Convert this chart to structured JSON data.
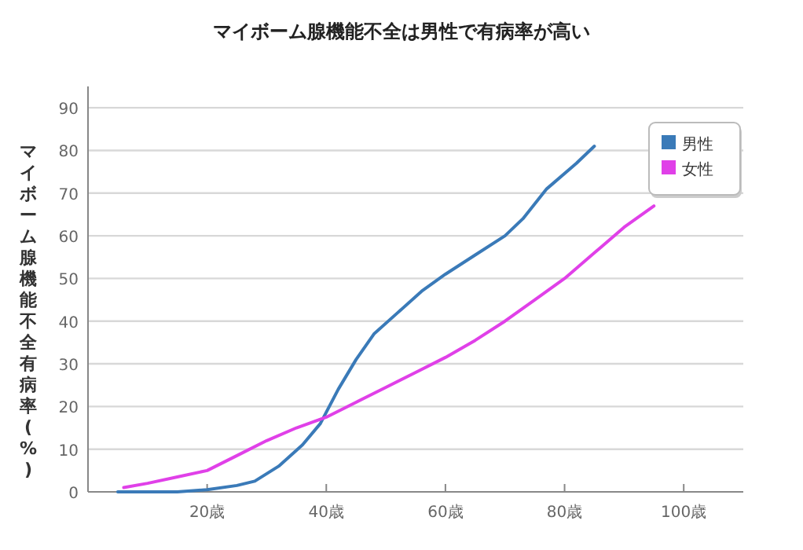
{
  "chart_data": {
    "type": "line",
    "title": "マイボーム腺機能不全は男性で有病率が高い",
    "ylabel": "マイボーム腺機能不全有病率(%)",
    "xlim": [
      0,
      110
    ],
    "xticks": [
      {
        "value": 20,
        "label": "20歳"
      },
      {
        "value": 40,
        "label": "40歳"
      },
      {
        "value": 60,
        "label": "60歳"
      },
      {
        "value": 80,
        "label": "80歳"
      },
      {
        "value": 100,
        "label": "100歳"
      }
    ],
    "ylim": [
      0,
      95
    ],
    "yticks": [
      0,
      10,
      20,
      30,
      40,
      50,
      60,
      70,
      80,
      90
    ],
    "grid": "y",
    "legend": "top right",
    "marker": "none",
    "line_style": "solid",
    "series": [
      {
        "name": "男性",
        "color": "#3a7ab8",
        "x": [
          5,
          15,
          20,
          25,
          28,
          32,
          36,
          39,
          42,
          45,
          48,
          52,
          56,
          60,
          65,
          70,
          73,
          77,
          82,
          85
        ],
        "values": [
          0,
          0,
          0.5,
          1.5,
          2.5,
          6,
          11,
          16,
          24,
          31,
          37,
          42,
          47,
          51,
          55.5,
          60,
          64,
          71,
          77,
          81
        ]
      },
      {
        "name": "女性",
        "color": "#e040e8",
        "x": [
          6,
          10,
          15,
          20,
          25,
          30,
          35,
          40,
          45,
          50,
          55,
          60,
          65,
          70,
          75,
          80,
          85,
          90,
          95
        ],
        "values": [
          1,
          2,
          3.5,
          5,
          8.5,
          12,
          15,
          17.5,
          21,
          24.5,
          28,
          31.5,
          35.5,
          40,
          45,
          50,
          56,
          62,
          67
        ]
      }
    ]
  }
}
